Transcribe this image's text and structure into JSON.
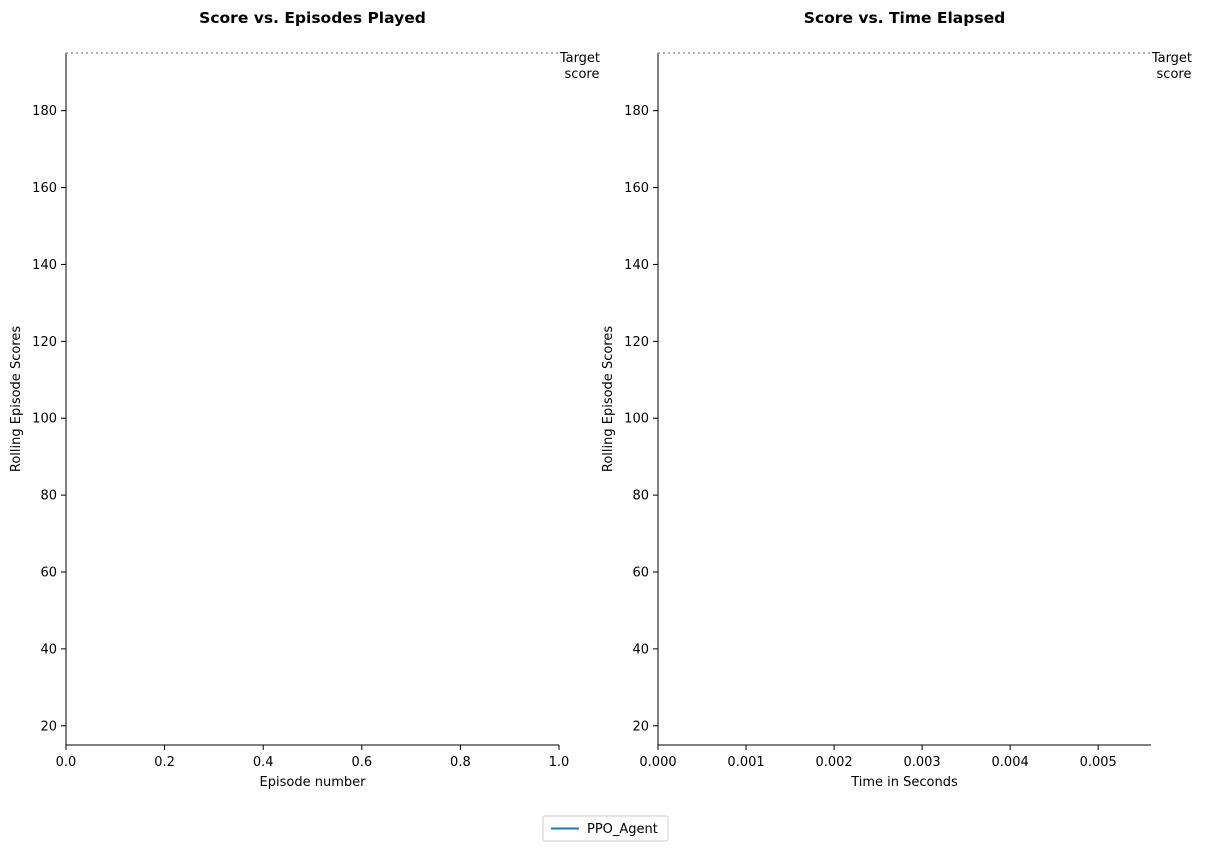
{
  "colors": {
    "series": "#1f77b4",
    "target_line": "#808080",
    "axis": "#000000",
    "legend_border": "#cccccc"
  },
  "legend": {
    "placement": "bottom-center",
    "entries": [
      "PPO_Agent"
    ]
  },
  "chart_data": [
    {
      "type": "line",
      "title": "Score vs. Episodes Played",
      "xlabel": "Episode number",
      "ylabel": "Rolling Episode Scores",
      "xlim": [
        0.0,
        1.0
      ],
      "ylim": [
        15,
        195
      ],
      "xticks": [
        0.0,
        0.2,
        0.4,
        0.6,
        0.8,
        1.0
      ],
      "xtick_labels": [
        "0.0",
        "0.2",
        "0.4",
        "0.6",
        "0.8",
        "1.0"
      ],
      "yticks": [
        20,
        40,
        60,
        80,
        100,
        120,
        140,
        160,
        180
      ],
      "ytick_labels": [
        "20",
        "40",
        "60",
        "80",
        "100",
        "120",
        "140",
        "160",
        "180"
      ],
      "grid": false,
      "target_score": 195,
      "target_label_lines": [
        "Target",
        "score"
      ],
      "series": [
        {
          "name": "PPO_Agent",
          "x": [],
          "y": []
        }
      ]
    },
    {
      "type": "line",
      "title": "Score vs. Time Elapsed",
      "xlabel": "Time in Seconds",
      "ylabel": "Rolling Episode Scores",
      "xlim": [
        0.0,
        0.0056
      ],
      "ylim": [
        15,
        195
      ],
      "xticks": [
        0.0,
        0.001,
        0.002,
        0.003,
        0.004,
        0.005
      ],
      "xtick_labels": [
        "0.000",
        "0.001",
        "0.002",
        "0.003",
        "0.004",
        "0.005"
      ],
      "yticks": [
        20,
        40,
        60,
        80,
        100,
        120,
        140,
        160,
        180
      ],
      "ytick_labels": [
        "20",
        "40",
        "60",
        "80",
        "100",
        "120",
        "140",
        "160",
        "180"
      ],
      "grid": false,
      "target_score": 195,
      "target_label_lines": [
        "Target",
        "score"
      ],
      "series": [
        {
          "name": "PPO_Agent",
          "x": [],
          "y": []
        }
      ]
    }
  ]
}
